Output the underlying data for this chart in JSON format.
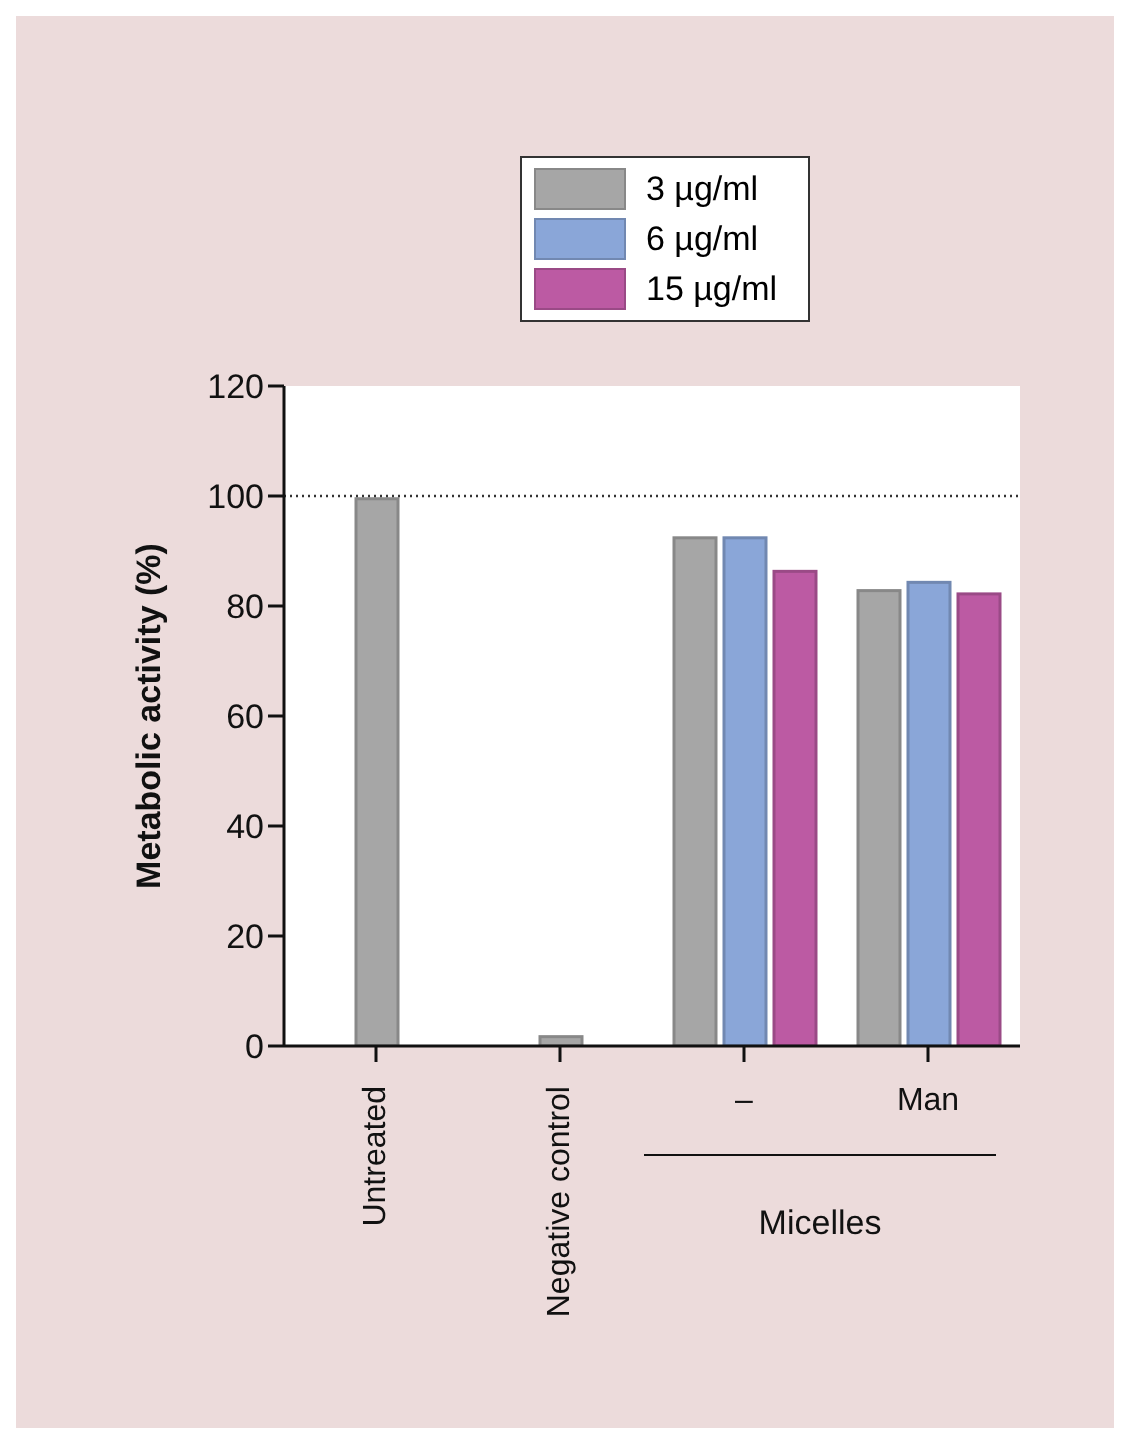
{
  "chart_data": {
    "type": "bar",
    "ylabel": "Metabolic activity (%)",
    "categories": [
      "Untreated",
      "Negative control",
      "–",
      "Man"
    ],
    "series": [
      {
        "name": "3 µg/ml",
        "color": "#a6a6a6",
        "values": [
          99.5,
          1.7,
          92.4,
          82.8
        ]
      },
      {
        "name": "6 µg/ml",
        "color": "#8aa6d8",
        "values": [
          null,
          null,
          92.4,
          84.3
        ]
      },
      {
        "name": "15 µg/ml",
        "color": "#bc5aa3",
        "values": [
          null,
          null,
          86.3,
          82.2
        ]
      }
    ],
    "ylim": [
      0,
      120
    ],
    "yticks": [
      0,
      20,
      40,
      60,
      80,
      100,
      120
    ],
    "ref_lines": [
      {
        "axis": "y",
        "value": 100,
        "color": "#333333",
        "line_style": "dotted"
      }
    ],
    "annotations": [
      "Micelles"
    ],
    "legend": "top",
    "grid": false
  }
}
